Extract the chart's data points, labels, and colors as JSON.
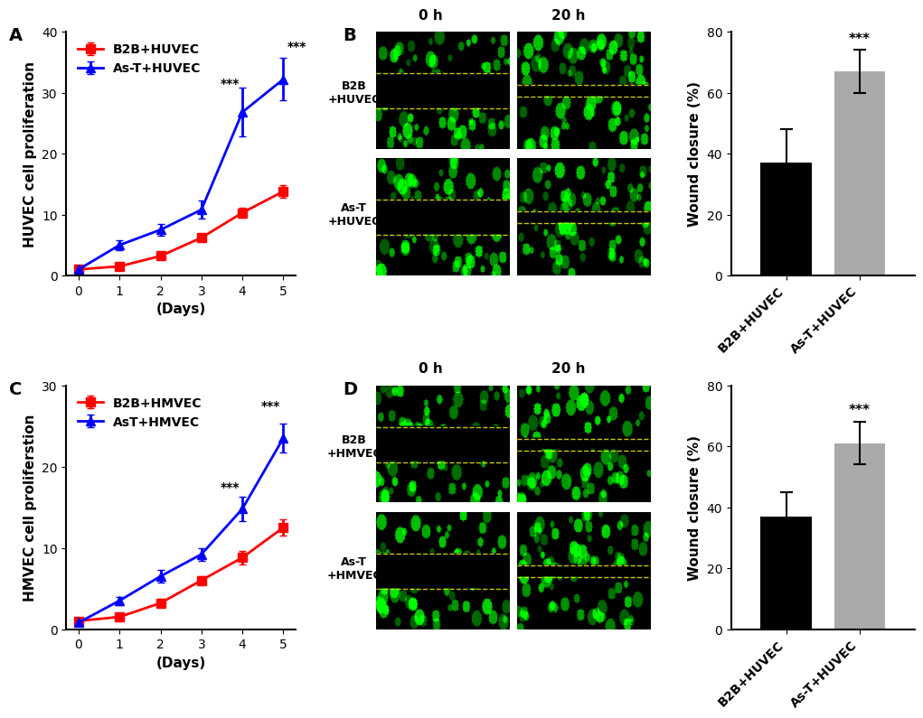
{
  "panel_A": {
    "label": "A",
    "x": [
      0,
      1,
      2,
      3,
      4,
      5
    ],
    "red_mean": [
      1.0,
      1.5,
      3.2,
      6.2,
      10.3,
      13.8
    ],
    "red_err": [
      0.2,
      0.3,
      0.5,
      0.5,
      0.8,
      1.0
    ],
    "blue_mean": [
      1.0,
      5.0,
      7.5,
      10.8,
      26.8,
      32.2
    ],
    "blue_err": [
      0.2,
      0.8,
      1.0,
      1.5,
      4.0,
      3.5
    ],
    "red_label": "B2B+HUVEC",
    "blue_label": "As-T+HUVEC",
    "ylabel": "HUVEC cell proliferation",
    "xlabel": "(Days)",
    "ylim": [
      0,
      40
    ],
    "yticks": [
      0,
      10,
      20,
      30,
      40
    ],
    "xticks": [
      0,
      1,
      2,
      3,
      4,
      5
    ],
    "star4_x": 4,
    "star4_y": 31,
    "star5_x": 5,
    "star5_y": 37
  },
  "panel_C": {
    "label": "C",
    "x": [
      0,
      1,
      2,
      3,
      4,
      5
    ],
    "red_mean": [
      1.0,
      1.5,
      3.2,
      6.0,
      8.8,
      12.5
    ],
    "red_err": [
      0.2,
      0.3,
      0.5,
      0.5,
      0.8,
      1.0
    ],
    "blue_mean": [
      0.8,
      3.5,
      6.5,
      9.2,
      14.8,
      23.5
    ],
    "blue_err": [
      0.2,
      0.5,
      0.8,
      0.8,
      1.5,
      1.8
    ],
    "red_label": "B2B+HMVEC",
    "blue_label": "AsT+HMVEC",
    "ylabel": "HMVEC cell proliferstion",
    "xlabel": "(Days)",
    "ylim": [
      0,
      30
    ],
    "yticks": [
      0,
      10,
      20,
      30
    ],
    "xticks": [
      0,
      1,
      2,
      3,
      4,
      5
    ],
    "star4_x": 4,
    "star4_y": 17,
    "star5_x": 5,
    "star5_y": 27
  },
  "panel_B_bar": {
    "label": "B",
    "categories": [
      "B2B+HUVEC",
      "As-T+HUVEC"
    ],
    "values": [
      37.0,
      67.0
    ],
    "errors": [
      11.0,
      7.0
    ],
    "colors": [
      "#000000",
      "#aaaaaa"
    ],
    "ylabel": "Wound closure (%)",
    "ylim": [
      0,
      80
    ],
    "yticks": [
      0,
      20,
      40,
      60,
      80
    ],
    "star_label": "***"
  },
  "panel_D_bar": {
    "label": "D",
    "categories": [
      "B2B+HUVEC",
      "As-T+HUVEC"
    ],
    "values": [
      37.0,
      61.0
    ],
    "errors": [
      8.0,
      7.0
    ],
    "colors": [
      "#000000",
      "#aaaaaa"
    ],
    "ylabel": "Wound closure (%)",
    "ylim": [
      0,
      80
    ],
    "yticks": [
      0,
      20,
      40,
      60,
      80
    ],
    "star_label": "***"
  },
  "red_color": "#ff0000",
  "blue_color": "#0000ff",
  "bg_color": "#ffffff",
  "marker_size": 7,
  "linewidth": 2.0,
  "font_size_label": 11,
  "font_size_tick": 10,
  "font_size_legend": 10,
  "font_size_panel": 14
}
